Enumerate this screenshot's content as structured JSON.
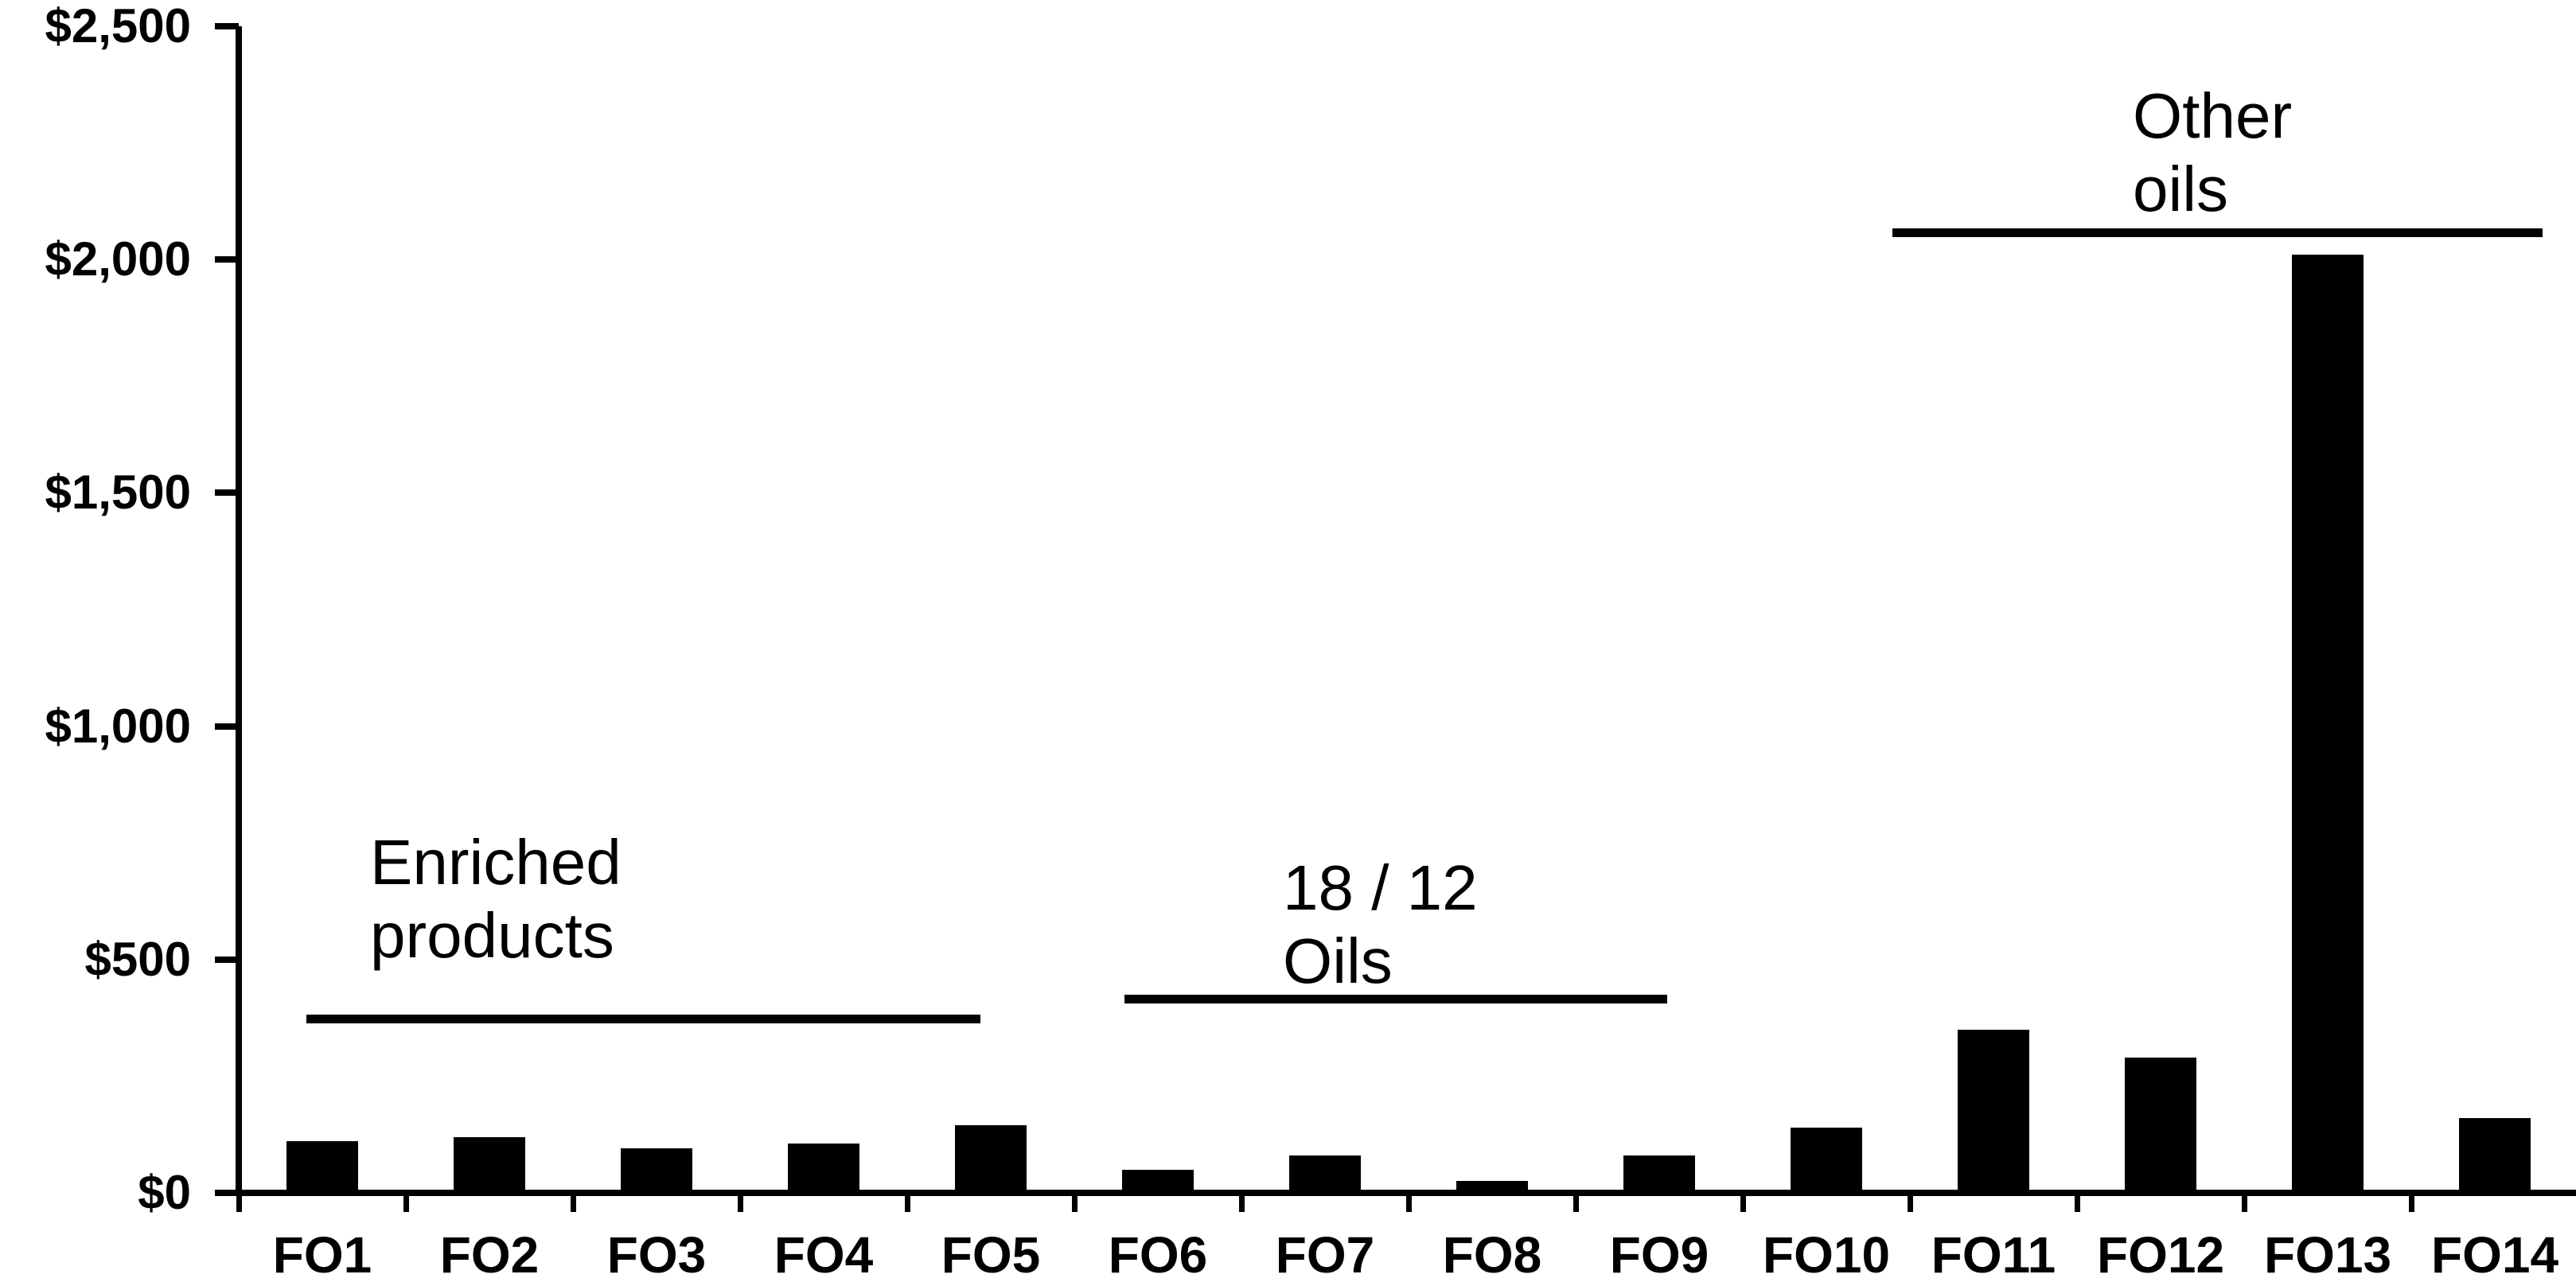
{
  "chart_data": {
    "type": "bar",
    "title": "",
    "xlabel": "",
    "ylabel": "",
    "categories": [
      "FO1",
      "FO2",
      "FO3",
      "FO4",
      "FO5",
      "FO6",
      "FO7",
      "FO8",
      "FO9",
      "FO10",
      "FO11",
      "FO12",
      "FO13",
      "FO14"
    ],
    "values": [
      110,
      120,
      95,
      105,
      145,
      50,
      80,
      25,
      80,
      140,
      350,
      290,
      2010,
      160
    ],
    "ylim": [
      0,
      2500
    ],
    "ytick_interval": 500,
    "ytick_values": [
      0,
      500,
      1000,
      1500,
      2000,
      2500
    ],
    "ytick_labels": [
      "$0",
      "$500",
      "$1,000",
      "$1,500",
      "$2,000",
      "$2,500"
    ],
    "grid": false,
    "legend": false,
    "bar_color": "#000000",
    "axis_color": "#000000",
    "background_color": "#ffffff",
    "annotations": [
      {
        "text": "Enriched products",
        "lines": [
          "Enriched",
          "products"
        ],
        "covers_categories": [
          "FO1",
          "FO5"
        ]
      },
      {
        "text": "18 / 12 Oils",
        "lines": [
          "18 / 12",
          "Oils"
        ],
        "covers_categories": [
          "FO6",
          "FO9"
        ]
      },
      {
        "text": "Other oils",
        "lines": [
          "Other",
          "oils"
        ],
        "covers_categories": [
          "FO10",
          "FO14"
        ]
      }
    ]
  }
}
